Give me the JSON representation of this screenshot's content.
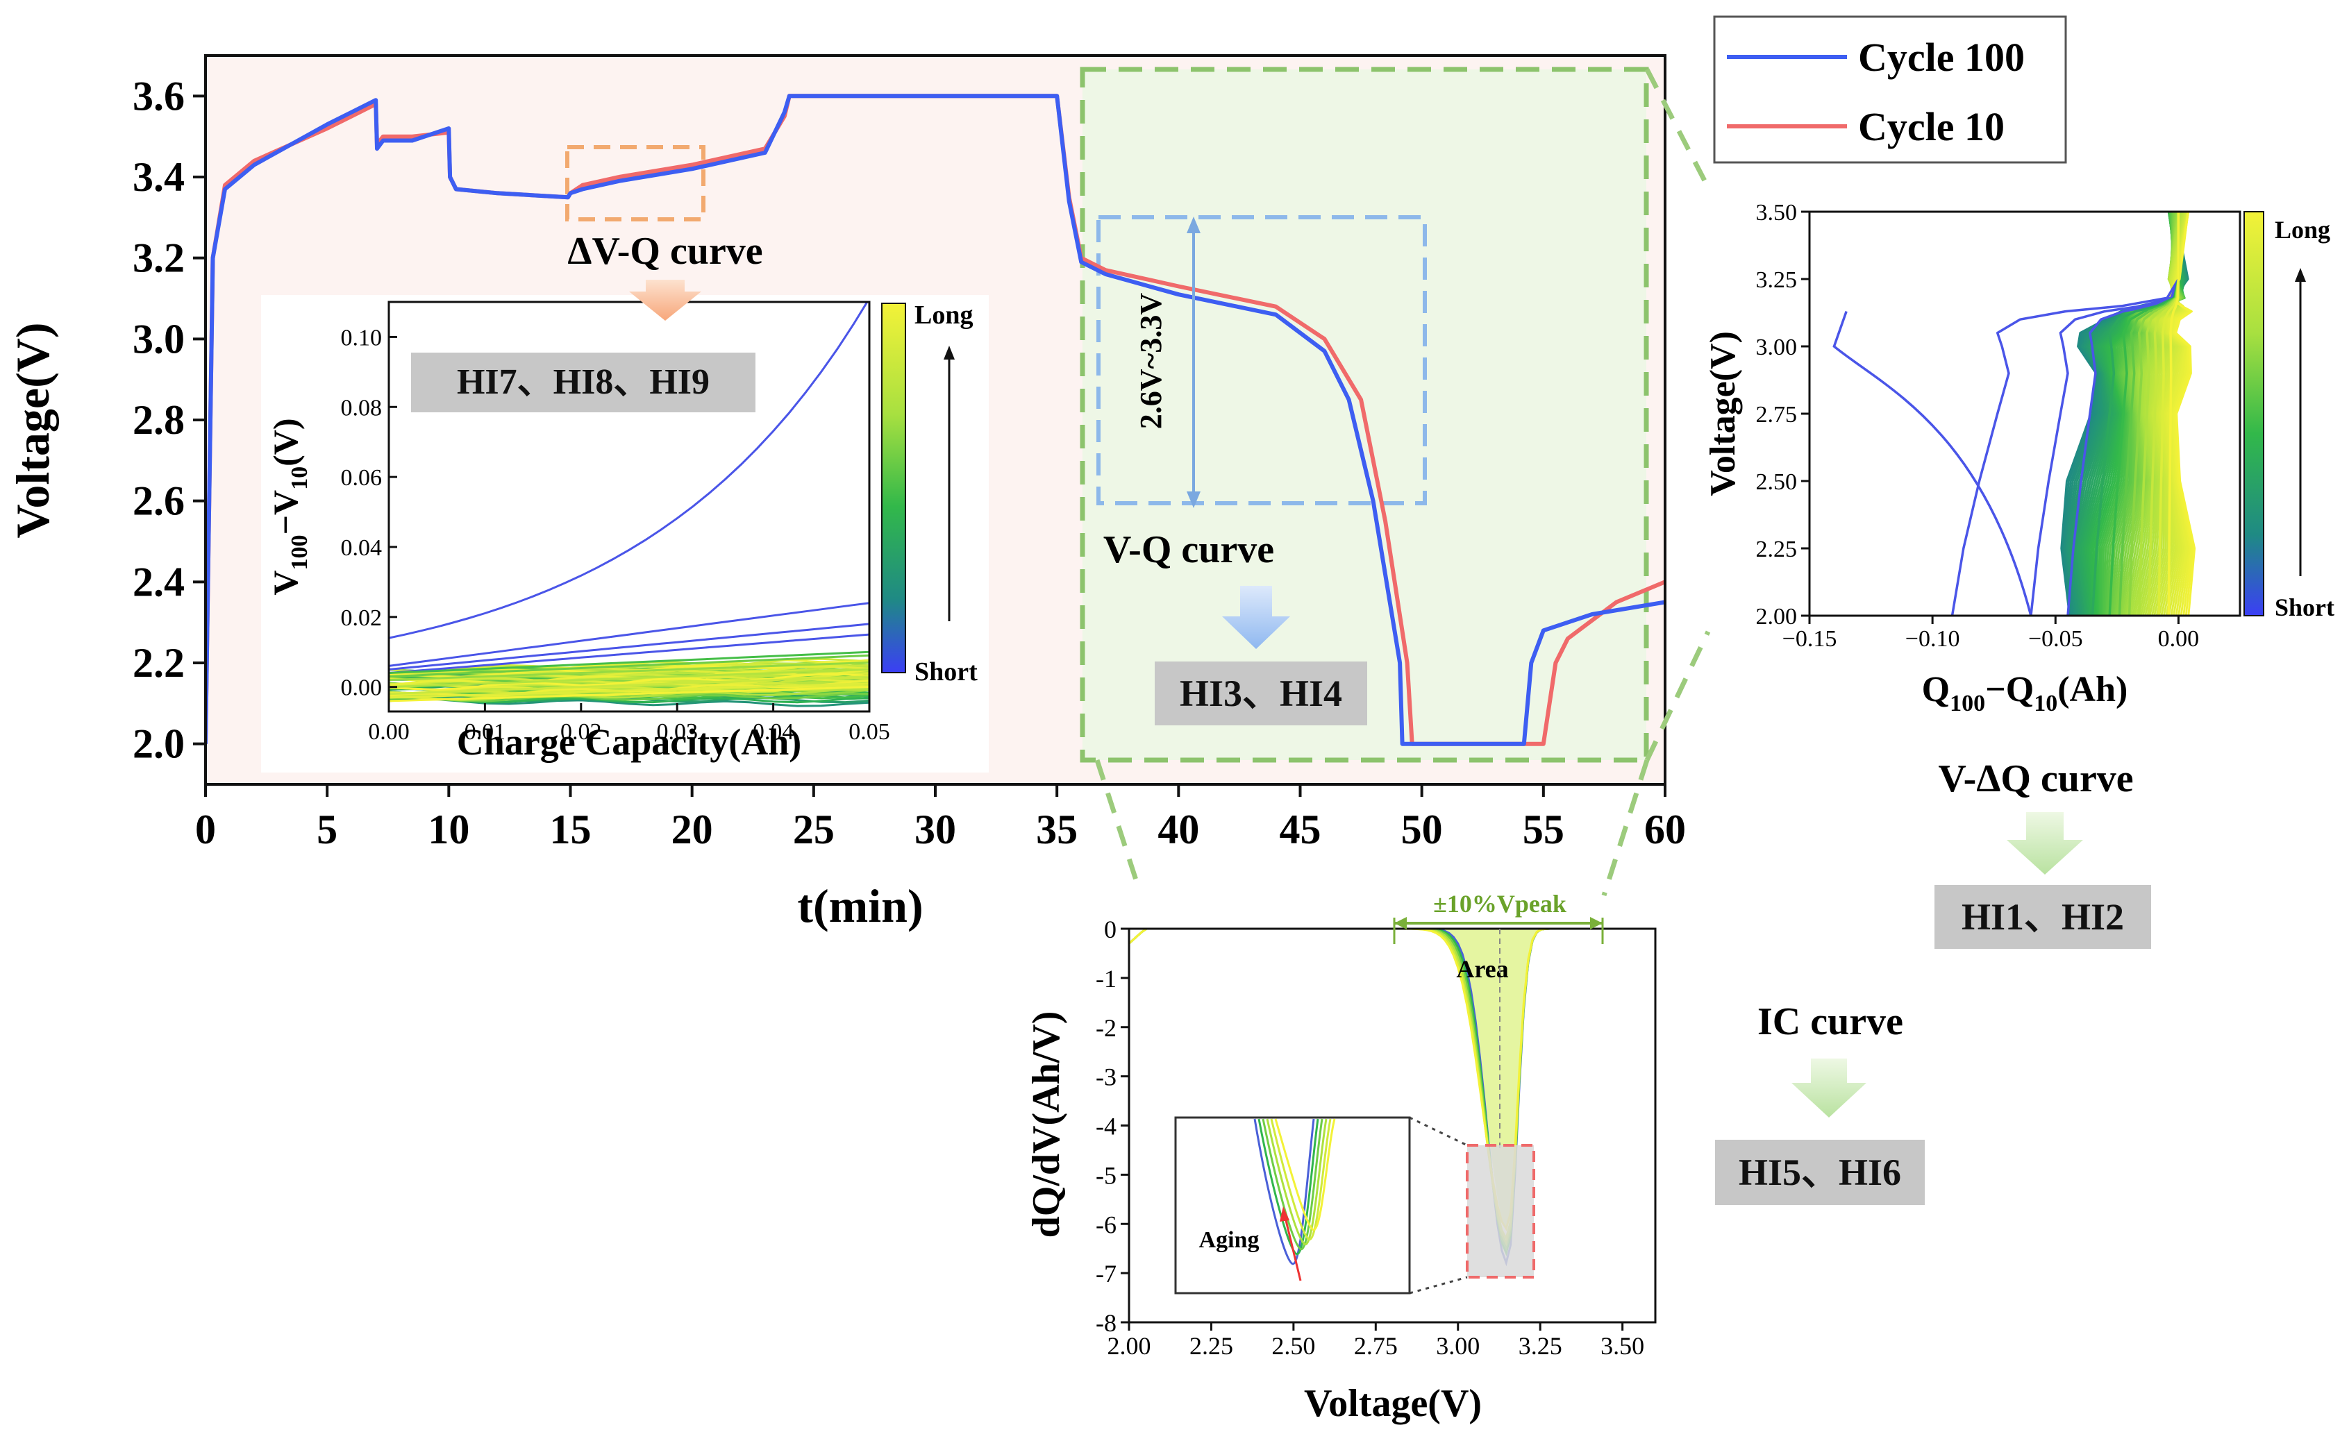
{
  "chart_data": [
    {
      "id": "main",
      "type": "line",
      "xlabel": "t(min)",
      "ylabel": "Voltage(V)",
      "xlim": [
        0,
        60
      ],
      "ylim": [
        1.9,
        3.7
      ],
      "xticks": [
        0,
        5,
        10,
        15,
        20,
        25,
        30,
        35,
        40,
        45,
        50,
        55,
        60
      ],
      "yticks": [
        "2.0",
        "2.2",
        "2.4",
        "2.6",
        "2.8",
        "3.0",
        "3.2",
        "3.4",
        "3.6"
      ],
      "legend": [
        "Cycle 100",
        "Cycle 10"
      ],
      "colors": {
        "cycle100": "#3d5ef2",
        "cycle10": "#f06a6a"
      },
      "series": [
        {
          "name": "Cycle 10",
          "t": [
            0,
            0.3,
            0.8,
            2,
            5,
            7,
            7.05,
            7.3,
            8.5,
            10,
            10.05,
            10.3,
            12,
            14.9,
            15.0,
            15.5,
            17,
            20,
            23,
            23.8,
            24,
            30,
            35,
            35.5,
            36,
            37,
            40,
            44,
            46,
            47.5,
            48.5,
            49.4,
            49.6,
            52,
            55,
            55.5,
            56,
            58,
            60
          ],
          "v": [
            2.0,
            3.2,
            3.38,
            3.44,
            3.52,
            3.58,
            3.48,
            3.5,
            3.5,
            3.51,
            3.4,
            3.37,
            3.36,
            3.35,
            3.36,
            3.38,
            3.4,
            3.43,
            3.47,
            3.55,
            3.6,
            3.6,
            3.6,
            3.35,
            3.2,
            3.17,
            3.13,
            3.08,
            3.0,
            2.85,
            2.55,
            2.2,
            2.0,
            2.0,
            2.0,
            2.2,
            2.26,
            2.35,
            2.4
          ]
        },
        {
          "name": "Cycle 100",
          "t": [
            0,
            0.3,
            0.8,
            2,
            5,
            7,
            7.05,
            7.3,
            8.5,
            10,
            10.05,
            10.3,
            12,
            14.9,
            15.0,
            15.5,
            17,
            20,
            23,
            23.8,
            24,
            30,
            35,
            35.5,
            36,
            37,
            40,
            44,
            46,
            47,
            48,
            49.1,
            49.2,
            52,
            54.2,
            54.5,
            55,
            57,
            60
          ],
          "v": [
            2.0,
            3.2,
            3.37,
            3.43,
            3.53,
            3.59,
            3.47,
            3.49,
            3.49,
            3.52,
            3.4,
            3.37,
            3.36,
            3.35,
            3.36,
            3.37,
            3.39,
            3.42,
            3.46,
            3.56,
            3.6,
            3.6,
            3.6,
            3.34,
            3.19,
            3.16,
            3.11,
            3.06,
            2.97,
            2.85,
            2.6,
            2.2,
            2.0,
            2.0,
            2.0,
            2.2,
            2.28,
            2.32,
            2.35
          ]
        }
      ],
      "annotations": [
        "ΔV-Q curve",
        "2.6V~3.3V",
        "V-Q curve"
      ]
    },
    {
      "id": "inset-dv",
      "type": "line",
      "xlabel": "Charge Capacity(Ah)",
      "ylabel": "V100−V10(V)",
      "xlim": [
        0,
        0.05
      ],
      "ylim": [
        -0.007,
        0.11
      ],
      "xticks": [
        "0.00",
        "0.01",
        "0.02",
        "0.03",
        "0.04",
        "0.05"
      ],
      "yticks": [
        "0.00",
        "0.02",
        "0.04",
        "0.06",
        "0.08",
        "0.10"
      ],
      "colorbar": [
        "Long",
        "Short"
      ],
      "series_end_values": [
        0.111,
        0.024,
        0.018,
        0.015,
        0.01,
        0.009,
        0.007,
        0.005,
        0.003,
        0.001,
        0.0
      ],
      "series_start_values": [
        0.014,
        0.006,
        0.005,
        0.004,
        0.004,
        0.003,
        0.002,
        0.0,
        -0.002,
        -0.003,
        -0.004
      ]
    },
    {
      "id": "v-dq",
      "type": "line",
      "xlabel": "Q100−Q10(Ah)",
      "ylabel": "Voltage(V)",
      "xlim": [
        -0.15,
        0.025
      ],
      "ylim": [
        2.0,
        3.5
      ],
      "xticks": [
        "−0.15",
        "−0.10",
        "−0.05",
        "0.00"
      ],
      "yticks": [
        "2.00",
        "2.25",
        "2.50",
        "2.75",
        "3.00",
        "3.25",
        "3.50"
      ],
      "colorbar": [
        "Long",
        "Short"
      ],
      "bottom_q_values": [
        -0.092,
        -0.06,
        -0.045,
        -0.035,
        -0.028,
        -0.024,
        -0.02,
        -0.016,
        -0.012,
        -0.008,
        -0.004
      ]
    },
    {
      "id": "ic",
      "type": "line",
      "xlabel": "Voltage(V)",
      "ylabel": "dQ/dV(Ah/V)",
      "xlim": [
        2.0,
        3.6
      ],
      "ylim": [
        -8,
        0
      ],
      "xticks": [
        "2.00",
        "2.25",
        "2.50",
        "2.75",
        "3.00",
        "3.25",
        "3.50"
      ],
      "yticks": [
        "0",
        "-1",
        "-2",
        "-3",
        "-4",
        "-5",
        "-6",
        "-7",
        "-8"
      ],
      "peak_voltage": 3.15,
      "peak_values": [
        -6.8,
        -6.6,
        -6.5,
        -6.4,
        -6.3,
        -6.1
      ],
      "annotations": [
        "±10%Vpeak",
        "Area",
        "Aging"
      ]
    }
  ],
  "labels": {
    "dvq_curve": "ΔV-Q curve",
    "hi789": "HI7、HI8、HI9",
    "range": "2.6V~3.3V",
    "vq_curve": "V-Q curve",
    "hi34": "HI3、HI4",
    "vdq_curve": "V-ΔQ curve",
    "hi12": "HI1、HI2",
    "ic_curve": "IC curve",
    "hi56": "HI5、HI6",
    "legend_c100": "Cycle 100",
    "legend_c10": "Cycle 10",
    "main_xlabel": "t(min)",
    "main_ylabel": "Voltage(V)",
    "inset_xlabel": "Charge Capacity(Ah)",
    "vdq_xlabel_main": "Q",
    "vdq_xlabel_sub1": "100",
    "vdq_xlabel_mid": "−Q",
    "vdq_xlabel_sub2": "10",
    "vdq_xlabel_end": "(Ah)",
    "vdq_ylabel": "Voltage(V)",
    "ic_xlabel": "Voltage(V)",
    "ic_ylabel": "dQ/dV(Ah/V)",
    "peak_window": "±10%Vpeak",
    "area": "Area",
    "aging": "Aging",
    "cb_long": "Long",
    "cb_short": "Short",
    "inset_ylabel_v": "V",
    "inset_ylabel_sub1": "100",
    "inset_ylabel_mid": "−V",
    "inset_ylabel_sub2": "10",
    "inset_ylabel_end": "(V)"
  }
}
